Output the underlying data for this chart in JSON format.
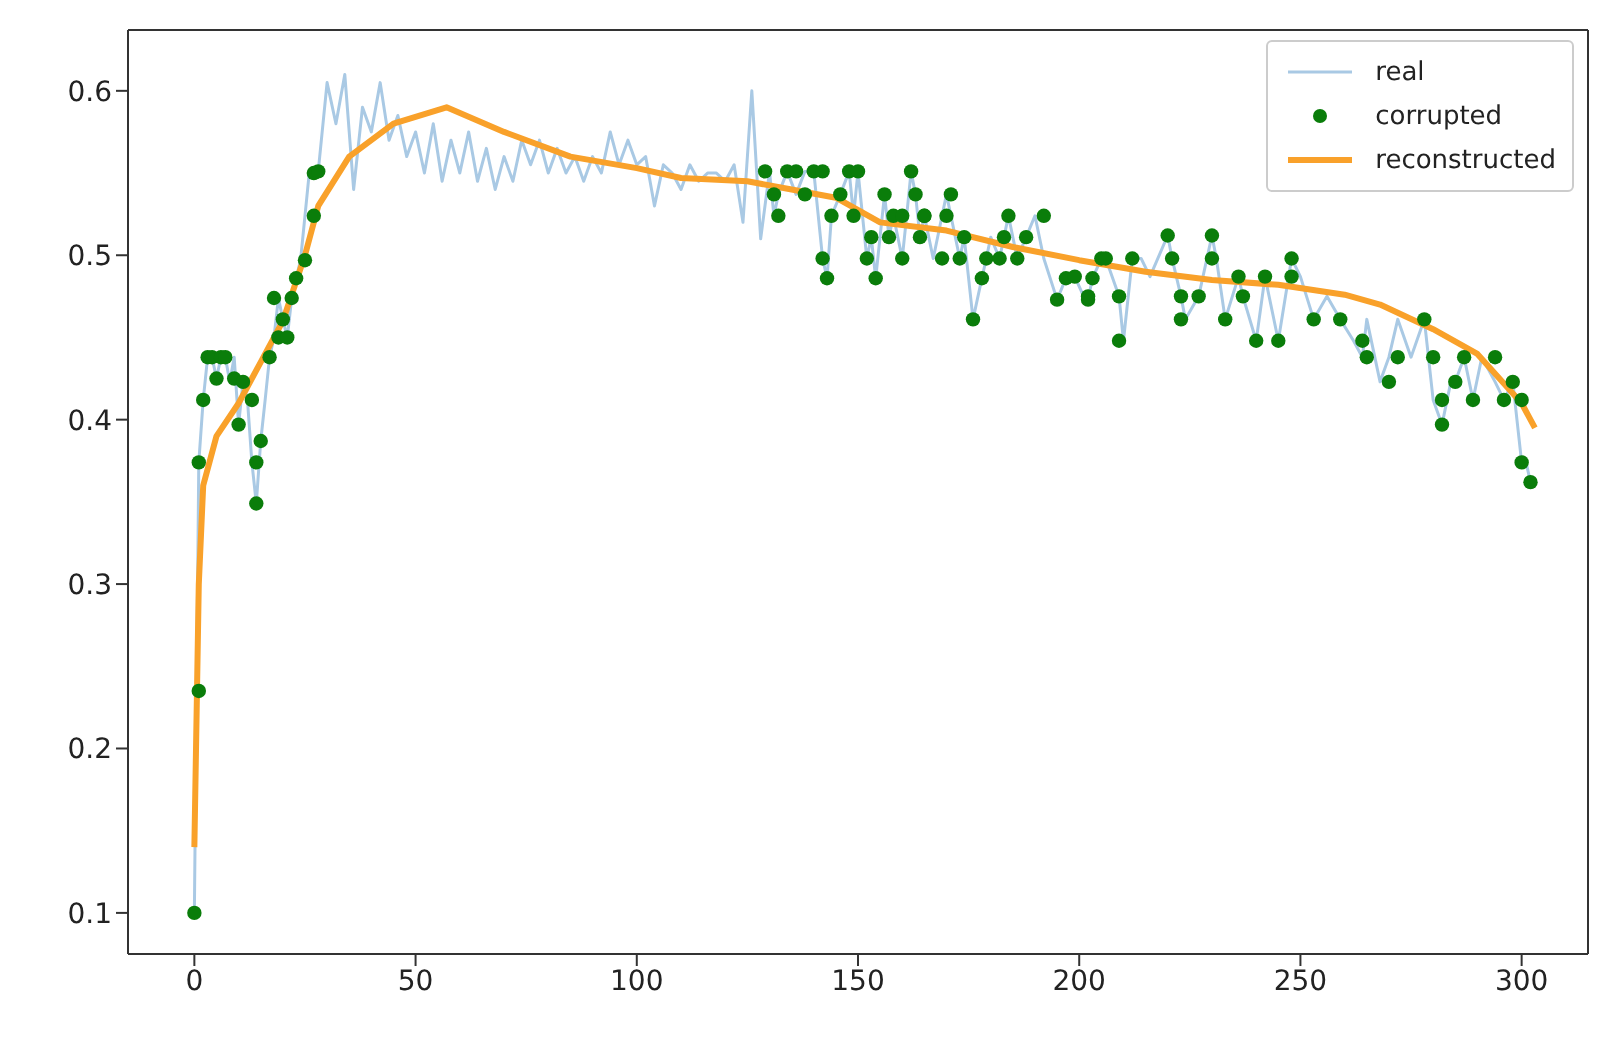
{
  "chart_data": {
    "type": "line",
    "xlim": [
      -15,
      315
    ],
    "xticks": [
      0,
      50,
      100,
      150,
      200,
      250,
      300
    ],
    "ylim": [
      0.075,
      0.637
    ],
    "yticks": [
      0.1,
      0.2,
      0.3,
      0.4,
      0.5,
      0.6
    ],
    "grid": false,
    "legend": "top right",
    "series": [
      {
        "name": "real",
        "type": "line",
        "color": "#a9c9e4",
        "marker": "none",
        "x": [
          0,
          1,
          2,
          3,
          4,
          5,
          6,
          7,
          8,
          9,
          10,
          11,
          12,
          13,
          14,
          15,
          16,
          17,
          18,
          19,
          20,
          21,
          22,
          23,
          24,
          25,
          26,
          27,
          28,
          30,
          32,
          34,
          36,
          38,
          40,
          42,
          44,
          46,
          48,
          50,
          52,
          54,
          56,
          58,
          60,
          62,
          64,
          66,
          68,
          70,
          72,
          74,
          76,
          78,
          80,
          82,
          84,
          86,
          88,
          90,
          92,
          94,
          96,
          98,
          100,
          102,
          104,
          106,
          108,
          110,
          112,
          114,
          116,
          118,
          120,
          122,
          124,
          126,
          128,
          130,
          131,
          132,
          134,
          136,
          138,
          140,
          142,
          143,
          144,
          146,
          148,
          149,
          150,
          152,
          153,
          154,
          156,
          157,
          158,
          160,
          161,
          162,
          163,
          164,
          165,
          167,
          169,
          170,
          171,
          173,
          174,
          176,
          178,
          179,
          180,
          182,
          183,
          184,
          186,
          188,
          190,
          192,
          195,
          197,
          199,
          201,
          202,
          203,
          205,
          206,
          209,
          210,
          212,
          214,
          216,
          220,
          221,
          223,
          224,
          227,
          230,
          231,
          233,
          236,
          237,
          240,
          242,
          245,
          248,
          250,
          253,
          256,
          259,
          262,
          264,
          265,
          268,
          270,
          272,
          275,
          278,
          280,
          282,
          284,
          285,
          287,
          289,
          291,
          294,
          296,
          298,
          300,
          301,
          302,
          303
        ],
        "values": [
          0.1,
          0.374,
          0.412,
          0.438,
          0.438,
          0.425,
          0.438,
          0.438,
          0.423,
          0.438,
          0.397,
          0.423,
          0.412,
          0.374,
          0.349,
          0.387,
          0.412,
          0.438,
          0.45,
          0.474,
          0.461,
          0.45,
          0.474,
          0.486,
          0.497,
          0.524,
          0.551,
          0.55,
          0.551,
          0.605,
          0.58,
          0.61,
          0.54,
          0.59,
          0.575,
          0.605,
          0.57,
          0.585,
          0.56,
          0.575,
          0.55,
          0.58,
          0.545,
          0.57,
          0.55,
          0.575,
          0.545,
          0.565,
          0.54,
          0.56,
          0.545,
          0.57,
          0.555,
          0.57,
          0.55,
          0.565,
          0.55,
          0.56,
          0.545,
          0.56,
          0.55,
          0.575,
          0.555,
          0.57,
          0.555,
          0.56,
          0.53,
          0.555,
          0.55,
          0.54,
          0.555,
          0.545,
          0.55,
          0.55,
          0.545,
          0.555,
          0.52,
          0.6,
          0.51,
          0.551,
          0.524,
          0.537,
          0.551,
          0.537,
          0.551,
          0.551,
          0.498,
          0.486,
          0.524,
          0.537,
          0.551,
          0.524,
          0.551,
          0.498,
          0.511,
          0.486,
          0.537,
          0.511,
          0.524,
          0.498,
          0.524,
          0.551,
          0.537,
          0.511,
          0.524,
          0.498,
          0.524,
          0.537,
          0.524,
          0.498,
          0.511,
          0.461,
          0.486,
          0.498,
          0.511,
          0.498,
          0.511,
          0.524,
          0.498,
          0.511,
          0.524,
          0.498,
          0.473,
          0.486,
          0.487,
          0.475,
          0.473,
          0.486,
          0.498,
          0.498,
          0.475,
          0.448,
          0.498,
          0.498,
          0.487,
          0.512,
          0.498,
          0.475,
          0.461,
          0.475,
          0.512,
          0.498,
          0.461,
          0.487,
          0.475,
          0.448,
          0.487,
          0.448,
          0.498,
          0.487,
          0.461,
          0.475,
          0.461,
          0.448,
          0.438,
          0.461,
          0.423,
          0.438,
          0.461,
          0.438,
          0.461,
          0.412,
          0.397,
          0.423,
          0.423,
          0.438,
          0.412,
          0.438,
          0.423,
          0.412,
          0.423,
          0.374,
          0.374,
          0.362,
          0.362
        ]
      },
      {
        "name": "corrupted",
        "type": "scatter",
        "color": "#0a7d0a",
        "marker": "circle",
        "x": [
          0,
          1,
          1,
          2,
          3,
          4,
          5,
          6,
          7,
          9,
          10,
          11,
          13,
          14,
          14,
          15,
          17,
          18,
          19,
          20,
          21,
          22,
          23,
          25,
          27,
          27,
          28,
          129,
          131,
          132,
          134,
          136,
          138,
          140,
          142,
          142,
          143,
          144,
          146,
          148,
          149,
          150,
          152,
          153,
          154,
          156,
          157,
          158,
          160,
          160,
          162,
          163,
          164,
          165,
          165,
          169,
          170,
          171,
          173,
          174,
          176,
          178,
          179,
          182,
          183,
          184,
          186,
          188,
          192,
          195,
          197,
          199,
          202,
          202,
          203,
          205,
          206,
          209,
          209,
          212,
          220,
          221,
          223,
          223,
          227,
          230,
          230,
          233,
          236,
          237,
          240,
          242,
          245,
          248,
          248,
          253,
          259,
          264,
          265,
          270,
          272,
          278,
          280,
          282,
          282,
          285,
          287,
          289,
          294,
          296,
          298,
          300,
          300,
          302
        ],
        "values": [
          0.1,
          0.235,
          0.374,
          0.412,
          0.438,
          0.438,
          0.425,
          0.438,
          0.438,
          0.425,
          0.397,
          0.423,
          0.412,
          0.374,
          0.349,
          0.387,
          0.438,
          0.474,
          0.45,
          0.461,
          0.45,
          0.474,
          0.486,
          0.497,
          0.524,
          0.55,
          0.551,
          0.551,
          0.537,
          0.524,
          0.551,
          0.551,
          0.537,
          0.551,
          0.551,
          0.498,
          0.486,
          0.524,
          0.537,
          0.551,
          0.524,
          0.551,
          0.498,
          0.511,
          0.486,
          0.537,
          0.511,
          0.524,
          0.498,
          0.524,
          0.551,
          0.537,
          0.511,
          0.524,
          0.524,
          0.498,
          0.524,
          0.537,
          0.498,
          0.511,
          0.461,
          0.486,
          0.498,
          0.498,
          0.511,
          0.524,
          0.498,
          0.511,
          0.524,
          0.473,
          0.486,
          0.487,
          0.473,
          0.475,
          0.486,
          0.498,
          0.498,
          0.475,
          0.448,
          0.498,
          0.512,
          0.498,
          0.475,
          0.461,
          0.475,
          0.512,
          0.498,
          0.461,
          0.487,
          0.475,
          0.448,
          0.487,
          0.448,
          0.498,
          0.487,
          0.461,
          0.461,
          0.448,
          0.438,
          0.423,
          0.438,
          0.461,
          0.438,
          0.412,
          0.397,
          0.423,
          0.438,
          0.412,
          0.438,
          0.412,
          0.423,
          0.412,
          0.374,
          0.362
        ]
      },
      {
        "name": "reconstructed",
        "type": "line",
        "color": "#f9a12a",
        "marker": "none",
        "x": [
          0,
          1,
          2,
          5,
          10,
          15,
          20,
          25,
          28,
          35,
          45,
          57,
          70,
          85,
          100,
          110,
          125,
          135,
          145,
          155,
          170,
          185,
          200,
          215,
          230,
          245,
          260,
          268,
          280,
          290,
          300,
          303
        ],
        "values": [
          0.14,
          0.3,
          0.36,
          0.39,
          0.41,
          0.435,
          0.46,
          0.5,
          0.53,
          0.56,
          0.58,
          0.59,
          0.575,
          0.56,
          0.553,
          0.547,
          0.545,
          0.54,
          0.535,
          0.52,
          0.515,
          0.505,
          0.497,
          0.49,
          0.485,
          0.482,
          0.476,
          0.47,
          0.455,
          0.44,
          0.41,
          0.395
        ]
      }
    ]
  }
}
